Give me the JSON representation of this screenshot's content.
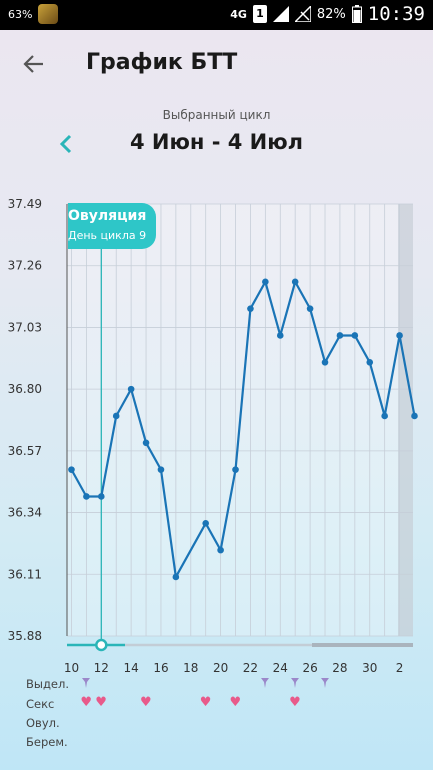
{
  "status": {
    "battery_left": "63%",
    "network": "4G",
    "sim": "1",
    "battery_pct": "82%",
    "time": "10:39"
  },
  "header": {
    "title": "График БТТ"
  },
  "cycle": {
    "caption": "Выбранный цикл",
    "range": "4 Июн - 4 Июл"
  },
  "ovulation": {
    "title": "Овуляция",
    "subtitle": "День цикла 9"
  },
  "legend": {
    "discharge": "Выдел.",
    "sex": "Секс",
    "ovul": "Овул.",
    "pregnancy": "Берем."
  },
  "chart_data": {
    "type": "line",
    "y_ticks": [
      "37.49",
      "37.26",
      "37.03",
      "36.80",
      "36.57",
      "36.34",
      "36.11",
      "35.88"
    ],
    "ylim": [
      35.88,
      37.49
    ],
    "x_ticks": [
      "10",
      "12",
      "14",
      "16",
      "18",
      "20",
      "22",
      "24",
      "26",
      "28",
      "30",
      "2"
    ],
    "x_tick_positions": [
      10,
      12,
      14,
      16,
      18,
      20,
      22,
      24,
      26,
      28,
      30,
      32
    ],
    "xlim": [
      9.7,
      32.9
    ],
    "series": [
      {
        "x": [
          10,
          11,
          12,
          13,
          14,
          15,
          16,
          17,
          19,
          20,
          21,
          22,
          23,
          24,
          25,
          26,
          27,
          28,
          29,
          30,
          31,
          32,
          33
        ],
        "values": [
          36.5,
          36.4,
          36.4,
          36.7,
          36.8,
          36.6,
          36.5,
          36.1,
          36.3,
          36.2,
          36.5,
          37.1,
          37.2,
          37.0,
          37.2,
          37.1,
          36.9,
          37.0,
          37.0,
          36.9,
          36.7,
          37.0,
          36.7
        ],
        "color": "#1a74b6"
      }
    ],
    "ovulation_day": 12,
    "discharge_days": [
      11,
      23,
      25,
      27
    ],
    "sex_days": [
      11,
      12,
      15,
      19,
      21,
      25
    ],
    "grid": true
  }
}
